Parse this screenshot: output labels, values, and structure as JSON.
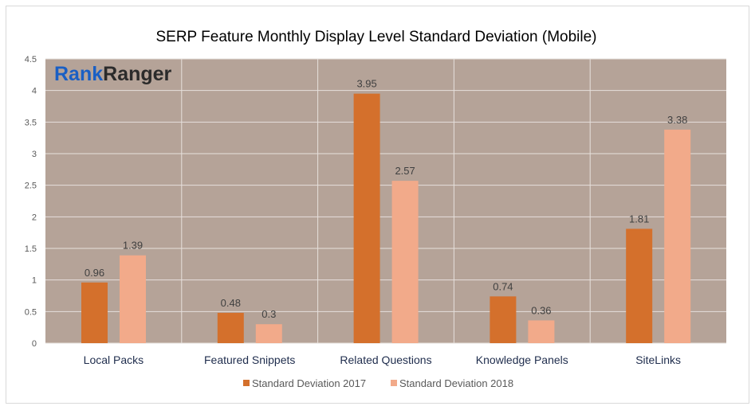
{
  "chart_data": {
    "type": "bar",
    "title": "SERP Feature Monthly Display Level Standard Deviation  (Mobile)",
    "categories": [
      "Local Packs",
      "Featured Snippets",
      "Related Questions",
      "Knowledge Panels",
      "SiteLinks"
    ],
    "series": [
      {
        "name": "Standard Deviation 2017",
        "values": [
          0.96,
          0.48,
          3.95,
          0.74,
          1.81
        ],
        "color": "#d4702c"
      },
      {
        "name": "Standard Deviation 2018",
        "values": [
          1.39,
          0.3,
          2.57,
          0.36,
          3.38
        ],
        "color": "#f2aa8a"
      }
    ],
    "ylim": [
      0,
      4.5
    ],
    "yticks": [
      "0",
      "0.5",
      "1",
      "1.5",
      "2",
      "2.5",
      "3",
      "3.5",
      "4",
      "4.5"
    ],
    "grid": true,
    "legend": "bottom",
    "plot_background": "#b5a398"
  },
  "logo": {
    "part1": "Rank",
    "part2": "Ranger"
  }
}
